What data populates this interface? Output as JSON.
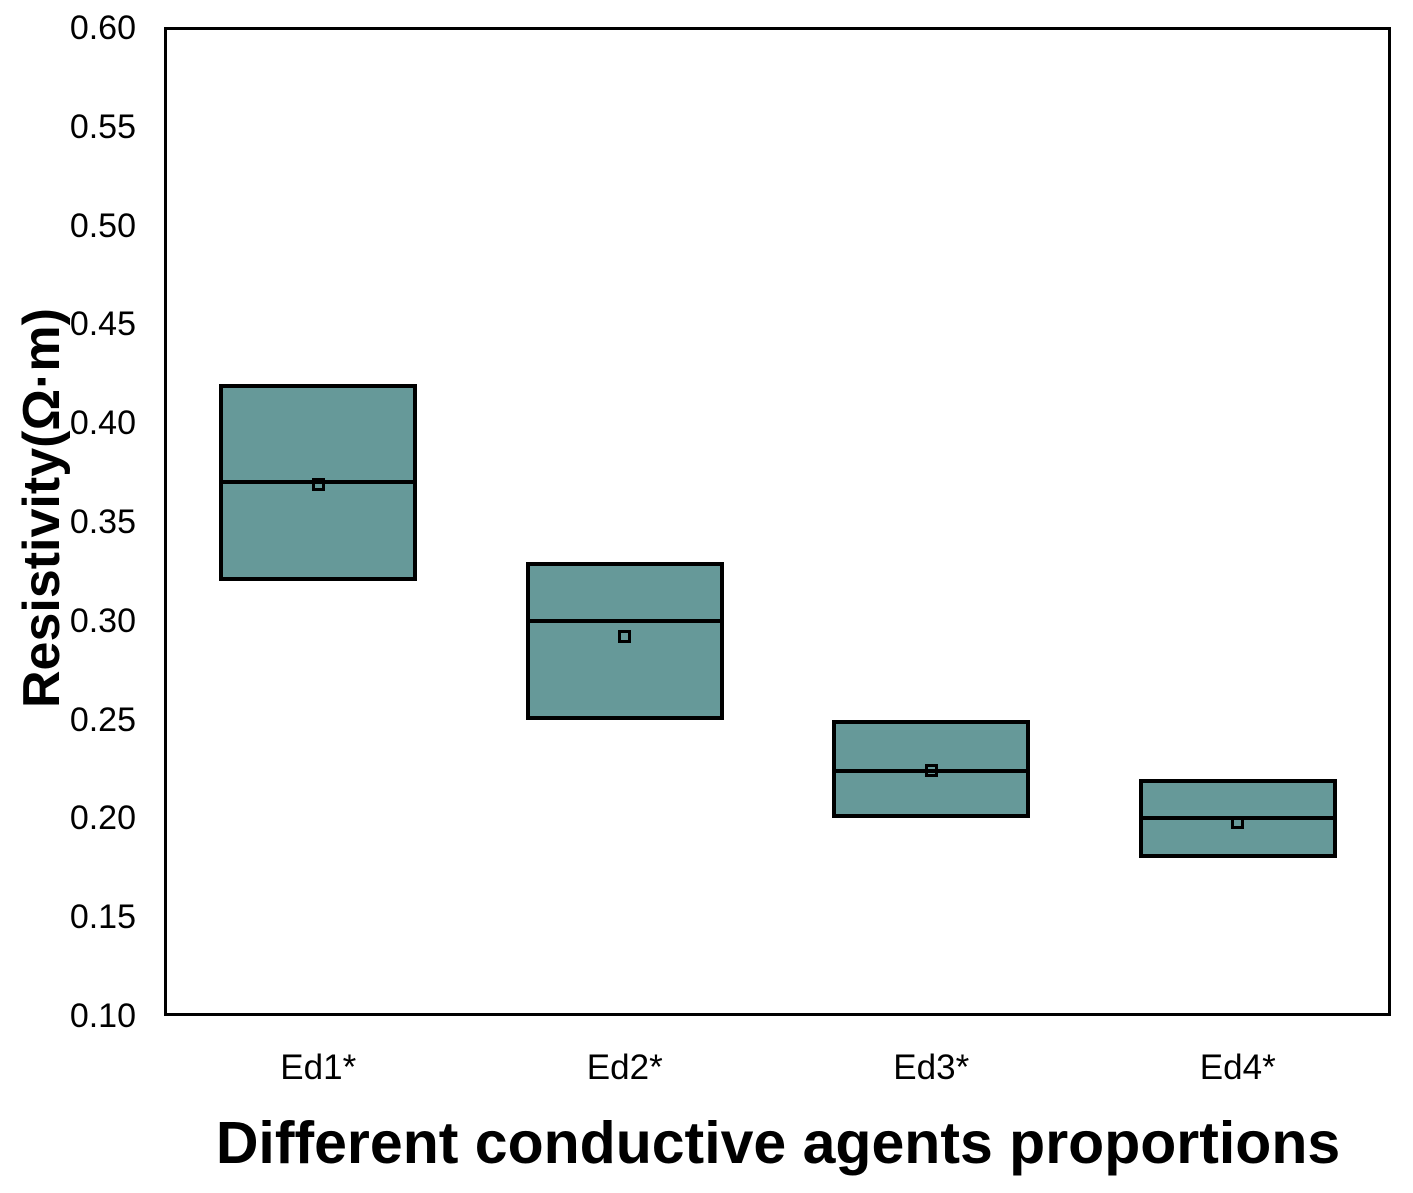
{
  "chart_data": {
    "type": "box",
    "title": "",
    "xlabel": "Different conductive agents proportions",
    "ylabel": "Resistivity(Ω·m)",
    "categories": [
      "Ed1*",
      "Ed2*",
      "Ed3*",
      "Ed4*"
    ],
    "series": [
      {
        "category": "Ed1*",
        "box_low": 0.32,
        "median": 0.37,
        "box_high": 0.42,
        "mean": 0.369
      },
      {
        "category": "Ed2*",
        "box_low": 0.25,
        "median": 0.3,
        "box_high": 0.33,
        "mean": 0.292
      },
      {
        "category": "Ed3*",
        "box_low": 0.2,
        "median": 0.224,
        "box_high": 0.25,
        "mean": 0.224
      },
      {
        "category": "Ed4*",
        "box_low": 0.18,
        "median": 0.2,
        "box_high": 0.22,
        "mean": 0.198
      }
    ],
    "ylim": [
      0.1,
      0.6
    ],
    "ytick_labels": [
      "0.60",
      "0.55",
      "0.50",
      "0.45",
      "0.40",
      "0.35",
      "0.30",
      "0.25",
      "0.20",
      "0.15",
      "0.10"
    ],
    "ytick_values": [
      0.6,
      0.55,
      0.5,
      0.45,
      0.4,
      0.35,
      0.3,
      0.25,
      0.2,
      0.15,
      0.1
    ],
    "grid": false,
    "whiskers": false,
    "legend_position": "none",
    "colors": {
      "box_fill": "#669999",
      "line": "#000000",
      "background": "#ffffff"
    }
  }
}
